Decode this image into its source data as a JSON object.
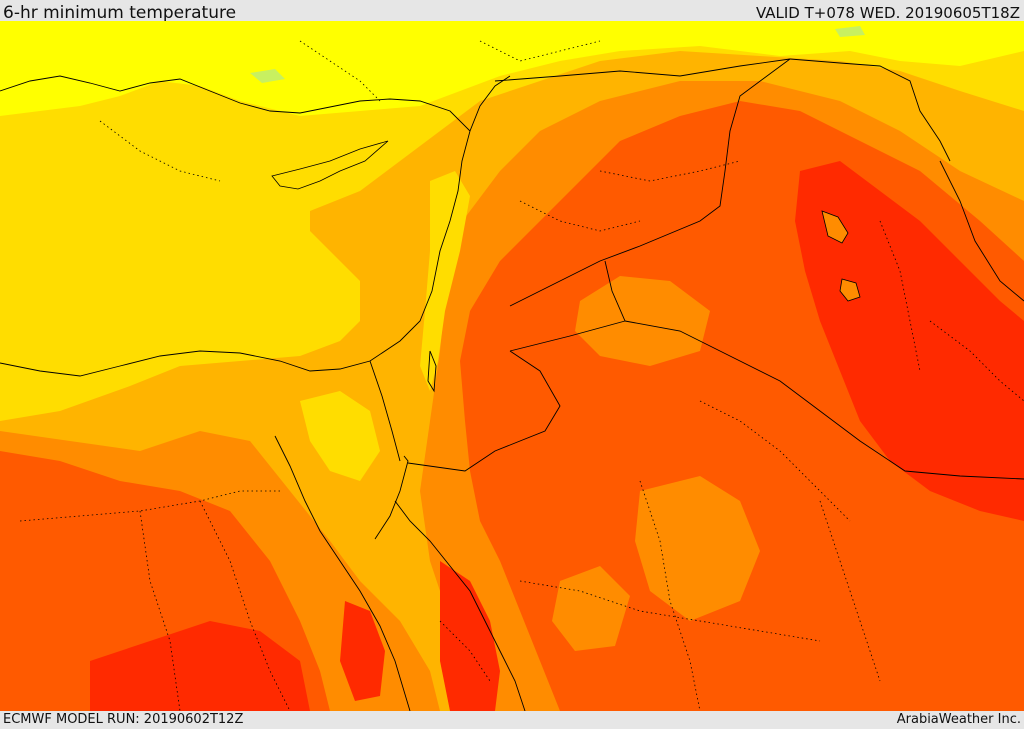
{
  "header": {
    "title": "6-hr minimum temperature",
    "valid": "VALID T+078 WED. 20190605T18Z"
  },
  "footer": {
    "model_run": "ECMWF MODEL RUN: 20190602T12Z",
    "credit": "ArabiaWeather Inc."
  },
  "map": {
    "palette": {
      "light_yellow": "#ffff00",
      "pale_green": "#c8f060",
      "yellow": "#ffdd00",
      "amber": "#ffb400",
      "orange": "#ff8c00",
      "dark_orange": "#ff5a00",
      "red": "#ff2a00",
      "border": "#000000"
    }
  }
}
